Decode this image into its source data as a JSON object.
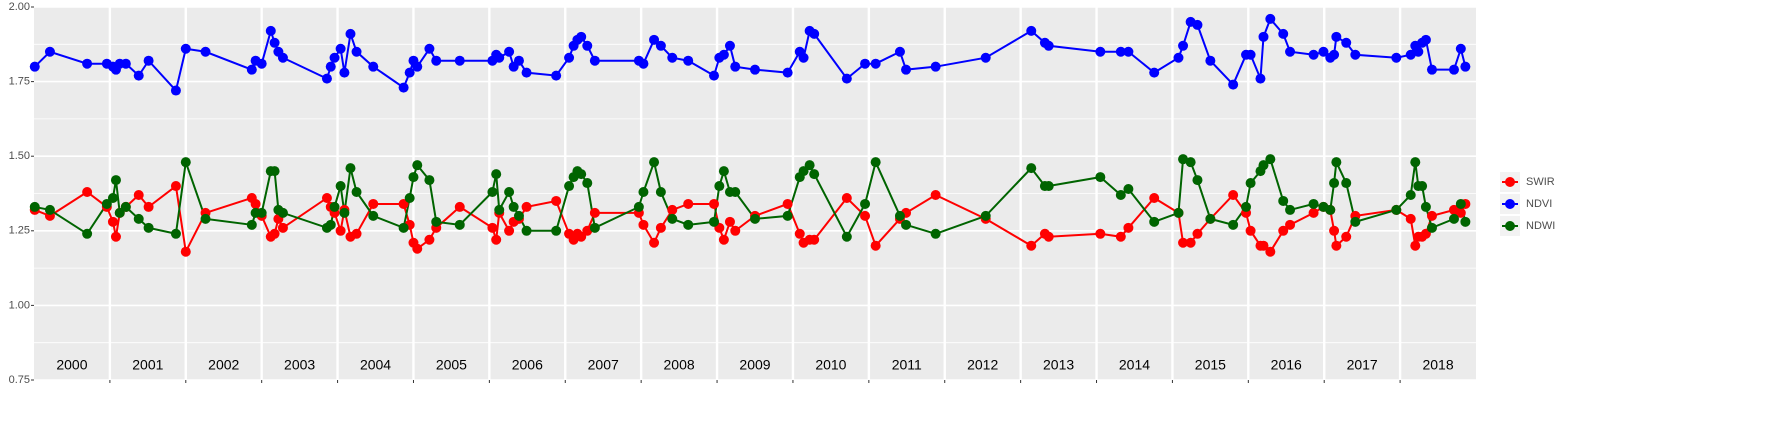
{
  "chart_data": {
    "type": "line",
    "x": [
      2000.01,
      2000.21,
      2000.7,
      2000.96,
      2001.04,
      2001.08,
      2001.13,
      2001.21,
      2001.38,
      2001.51,
      2001.87,
      2002.0,
      2002.26,
      2002.87,
      2002.92,
      2003.0,
      2003.12,
      2003.17,
      2003.22,
      2003.28,
      2003.86,
      2003.91,
      2003.96,
      2004.04,
      2004.09,
      2004.17,
      2004.25,
      2004.47,
      2004.87,
      2004.95,
      2005.0,
      2005.05,
      2005.21,
      2005.3,
      2005.61,
      2006.04,
      2006.09,
      2006.13,
      2006.26,
      2006.32,
      2006.39,
      2006.49,
      2006.88,
      2007.05,
      2007.11,
      2007.16,
      2007.21,
      2007.29,
      2007.39,
      2007.97,
      2008.03,
      2008.17,
      2008.26,
      2008.41,
      2008.62,
      2008.96,
      2009.03,
      2009.09,
      2009.17,
      2009.24,
      2009.5,
      2009.93,
      2010.09,
      2010.14,
      2010.22,
      2010.28,
      2010.71,
      2010.95,
      2011.09,
      2011.41,
      2011.49,
      2011.88,
      2012.54,
      2013.14,
      2013.32,
      2013.37,
      2014.05,
      2014.32,
      2014.42,
      2014.76,
      2015.08,
      2015.14,
      2015.24,
      2015.33,
      2015.5,
      2015.8,
      2015.97,
      2016.03,
      2016.16,
      2016.2,
      2016.29,
      2016.46,
      2016.55,
      2016.86,
      2016.99,
      2017.08,
      2017.13,
      2017.16,
      2017.29,
      2017.41,
      2017.95,
      2018.14,
      2018.2,
      2018.24,
      2018.29,
      2018.34,
      2018.42,
      2018.71,
      2018.8,
      2018.86
    ],
    "series": [
      {
        "name": "SWIR",
        "color": "#ff0000",
        "values": [
          1.32,
          1.3,
          1.38,
          1.33,
          1.28,
          1.23,
          1.31,
          1.33,
          1.37,
          1.33,
          1.4,
          1.18,
          1.31,
          1.36,
          1.34,
          1.3,
          1.23,
          1.24,
          1.29,
          1.26,
          1.36,
          1.33,
          1.31,
          1.25,
          1.32,
          1.23,
          1.24,
          1.34,
          1.34,
          1.27,
          1.21,
          1.19,
          1.22,
          1.26,
          1.33,
          1.26,
          1.22,
          1.31,
          1.25,
          1.28,
          1.29,
          1.33,
          1.35,
          1.24,
          1.22,
          1.24,
          1.23,
          1.25,
          1.31,
          1.31,
          1.27,
          1.21,
          1.26,
          1.32,
          1.34,
          1.34,
          1.26,
          1.22,
          1.28,
          1.25,
          1.3,
          1.34,
          1.24,
          1.21,
          1.22,
          1.22,
          1.36,
          1.3,
          1.2,
          1.29,
          1.31,
          1.37,
          1.29,
          1.2,
          1.24,
          1.23,
          1.24,
          1.23,
          1.26,
          1.36,
          1.31,
          1.21,
          1.21,
          1.24,
          1.29,
          1.37,
          1.31,
          1.25,
          1.2,
          1.2,
          1.18,
          1.25,
          1.27,
          1.31,
          1.33,
          1.32,
          1.25,
          1.2,
          1.23,
          1.3,
          1.32,
          1.29,
          1.2,
          1.23,
          1.23,
          1.24,
          1.3,
          1.32,
          1.31,
          1.34
        ]
      },
      {
        "name": "NDVI",
        "color": "#0000ff",
        "values": [
          1.8,
          1.85,
          1.81,
          1.81,
          1.8,
          1.79,
          1.81,
          1.81,
          1.77,
          1.82,
          1.72,
          1.86,
          1.85,
          1.79,
          1.82,
          1.81,
          1.92,
          1.88,
          1.85,
          1.83,
          1.76,
          1.8,
          1.83,
          1.86,
          1.78,
          1.91,
          1.85,
          1.8,
          1.73,
          1.78,
          1.82,
          1.8,
          1.86,
          1.82,
          1.82,
          1.82,
          1.84,
          1.83,
          1.85,
          1.8,
          1.82,
          1.78,
          1.77,
          1.83,
          1.87,
          1.89,
          1.9,
          1.87,
          1.82,
          1.82,
          1.81,
          1.89,
          1.87,
          1.83,
          1.82,
          1.77,
          1.83,
          1.84,
          1.87,
          1.8,
          1.79,
          1.78,
          1.85,
          1.83,
          1.92,
          1.91,
          1.76,
          1.81,
          1.81,
          1.85,
          1.79,
          1.8,
          1.83,
          1.92,
          1.88,
          1.87,
          1.85,
          1.85,
          1.85,
          1.78,
          1.83,
          1.87,
          1.95,
          1.94,
          1.82,
          1.74,
          1.84,
          1.84,
          1.76,
          1.9,
          1.96,
          1.91,
          1.85,
          1.84,
          1.85,
          1.83,
          1.84,
          1.9,
          1.88,
          1.84,
          1.83,
          1.84,
          1.87,
          1.85,
          1.88,
          1.89,
          1.79,
          1.79,
          1.86,
          1.8
        ]
      },
      {
        "name": "NDWI",
        "color": "#006400",
        "values": [
          1.33,
          1.32,
          1.24,
          1.34,
          1.36,
          1.42,
          1.31,
          1.33,
          1.29,
          1.26,
          1.24,
          1.48,
          1.29,
          1.27,
          1.31,
          1.31,
          1.45,
          1.45,
          1.32,
          1.31,
          1.26,
          1.27,
          1.33,
          1.4,
          1.31,
          1.46,
          1.38,
          1.3,
          1.26,
          1.36,
          1.43,
          1.47,
          1.42,
          1.28,
          1.27,
          1.38,
          1.44,
          1.32,
          1.38,
          1.33,
          1.3,
          1.25,
          1.25,
          1.4,
          1.43,
          1.45,
          1.44,
          1.41,
          1.26,
          1.33,
          1.38,
          1.48,
          1.38,
          1.29,
          1.27,
          1.28,
          1.4,
          1.45,
          1.38,
          1.38,
          1.29,
          1.3,
          1.43,
          1.45,
          1.47,
          1.44,
          1.23,
          1.34,
          1.48,
          1.3,
          1.27,
          1.24,
          1.3,
          1.46,
          1.4,
          1.4,
          1.43,
          1.37,
          1.39,
          1.28,
          1.31,
          1.49,
          1.48,
          1.42,
          1.29,
          1.27,
          1.33,
          1.41,
          1.45,
          1.47,
          1.49,
          1.35,
          1.32,
          1.34,
          1.33,
          1.32,
          1.41,
          1.48,
          1.41,
          1.28,
          1.32,
          1.37,
          1.48,
          1.4,
          1.4,
          1.33,
          1.26,
          1.29,
          1.34,
          1.28
        ]
      }
    ],
    "xlim": [
      2000,
      2019
    ],
    "xticks": [
      2001,
      2002,
      2003,
      2004,
      2005,
      2006,
      2007,
      2008,
      2009,
      2010,
      2011,
      2012,
      2013,
      2014,
      2015,
      2016,
      2017,
      2018
    ],
    "year_labels": [
      "2000",
      "2001",
      "2002",
      "2003",
      "2004",
      "2005",
      "2006",
      "2007",
      "2008",
      "2009",
      "2010",
      "2011",
      "2012",
      "2013",
      "2014",
      "2015",
      "2016",
      "2017",
      "2018"
    ],
    "ylim": [
      0.75,
      2.0
    ],
    "yticks": [
      {
        "value": 0.75,
        "label": "0.75"
      },
      {
        "value": 1.0,
        "label": "1.00"
      },
      {
        "value": 1.25,
        "label": "1.25"
      },
      {
        "value": 1.5,
        "label": "1.50"
      },
      {
        "value": 1.75,
        "label": "1.75"
      },
      {
        "value": 2.0,
        "label": "2.00"
      }
    ],
    "grid": true,
    "legend": "right"
  }
}
